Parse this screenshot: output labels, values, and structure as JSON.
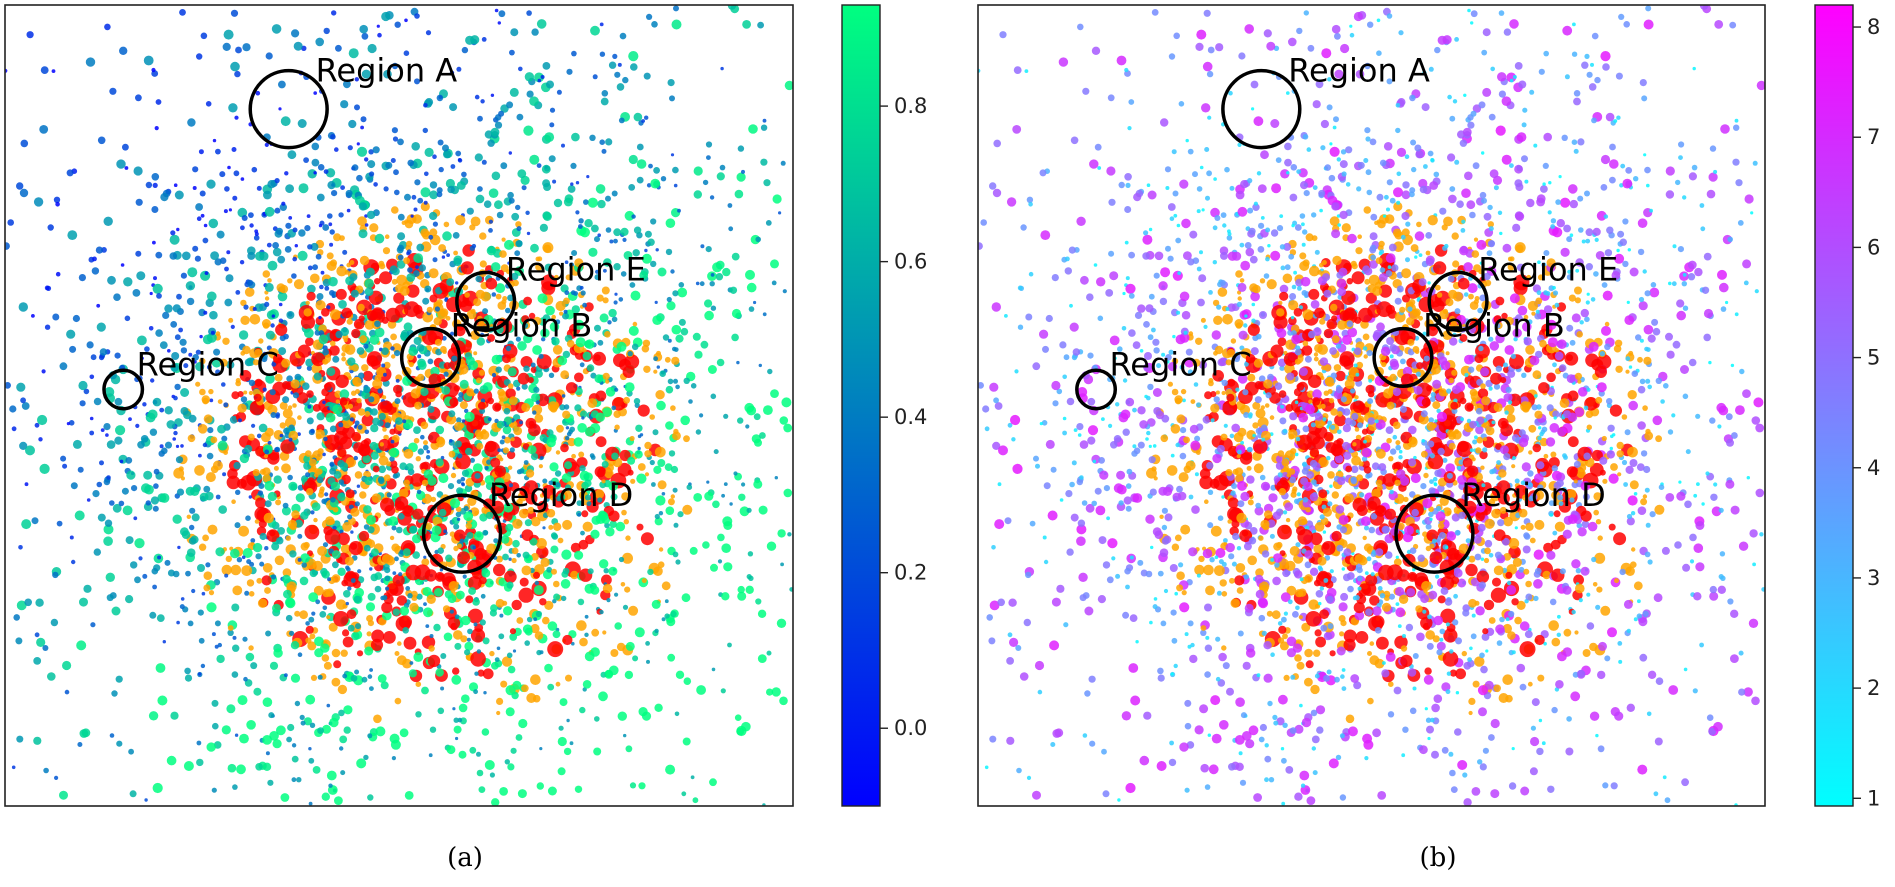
{
  "chart_data": [
    {
      "type": "scatter",
      "panel_caption": "(a)",
      "title": "",
      "xlabel": "",
      "ylabel": "",
      "axes_ticks": false,
      "colormap": [
        "#0000ff",
        "#00ff80"
      ],
      "colorbar": {
        "range": [
          -0.1,
          0.93
        ],
        "ticks": [
          0.0,
          0.2,
          0.4,
          0.6,
          0.8
        ],
        "tick_labels": [
          "0.0",
          "0.2",
          "0.4",
          "0.6",
          "0.8"
        ],
        "placement": "right"
      },
      "overlay_colors": [
        "#ff0000",
        "#ffa500"
      ],
      "regions": [
        {
          "label": "Region A",
          "x": 0.36,
          "y": 0.87,
          "r": 0.048
        },
        {
          "label": "Region E",
          "x": 0.61,
          "y": 0.63,
          "r": 0.036
        },
        {
          "label": "Region B",
          "x": 0.54,
          "y": 0.56,
          "r": 0.036
        },
        {
          "label": "Region C",
          "x": 0.15,
          "y": 0.52,
          "r": 0.024
        },
        {
          "label": "Region D",
          "x": 0.58,
          "y": 0.34,
          "r": 0.048
        }
      ]
    },
    {
      "type": "scatter",
      "panel_caption": "(b)",
      "title": "",
      "xlabel": "",
      "ylabel": "",
      "axes_ticks": false,
      "colormap": [
        "#00ffff",
        "#ff00ff"
      ],
      "colorbar": {
        "range": [
          0.93,
          8.2
        ],
        "ticks": [
          1,
          2,
          3,
          4,
          5,
          6,
          7,
          8
        ],
        "tick_labels": [
          "1",
          "2",
          "3",
          "4",
          "5",
          "6",
          "7",
          "8"
        ],
        "placement": "right"
      },
      "overlay_colors": [
        "#ff0000",
        "#ffa500"
      ],
      "regions": [
        {
          "label": "Region A",
          "x": 0.36,
          "y": 0.87,
          "r": 0.048
        },
        {
          "label": "Region E",
          "x": 0.61,
          "y": 0.63,
          "r": 0.036
        },
        {
          "label": "Region B",
          "x": 0.54,
          "y": 0.56,
          "r": 0.036
        },
        {
          "label": "Region C",
          "x": 0.15,
          "y": 0.52,
          "r": 0.024
        },
        {
          "label": "Region D",
          "x": 0.58,
          "y": 0.34,
          "r": 0.048
        }
      ]
    }
  ]
}
